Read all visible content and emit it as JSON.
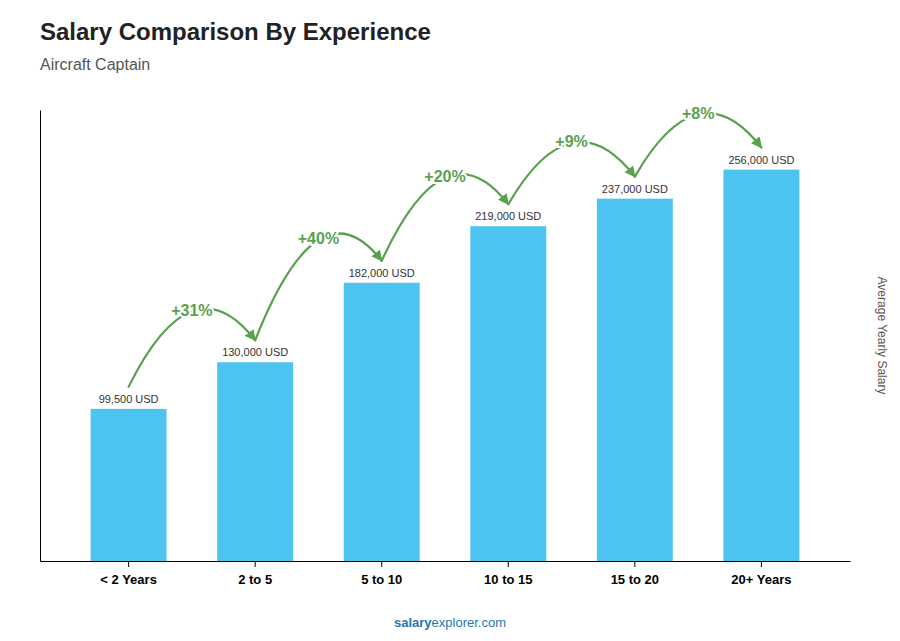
{
  "chart_data": {
    "type": "bar",
    "title": "Salary Comparison By Experience",
    "subtitle": "Aircraft Captain",
    "ylabel": "Average Yearly Salary",
    "categories": [
      "< 2 Years",
      "2 to 5",
      "5 to 10",
      "10 to 15",
      "15 to 20",
      "20+ Years"
    ],
    "values": [
      99500,
      130000,
      182000,
      219000,
      237000,
      256000
    ],
    "value_labels": [
      "99,500 USD",
      "130,000 USD",
      "182,000 USD",
      "219,000 USD",
      "237,000 USD",
      "256,000 USD"
    ],
    "data_labels": true,
    "increase_labels": [
      "+31%",
      "+40%",
      "+20%",
      "+9%",
      "+8%"
    ],
    "color": "#4dc3f0",
    "ylim": [
      0,
      295000
    ],
    "tick_labels": "x",
    "grid": false,
    "watermark": [
      "salary",
      "explorer.com"
    ]
  }
}
